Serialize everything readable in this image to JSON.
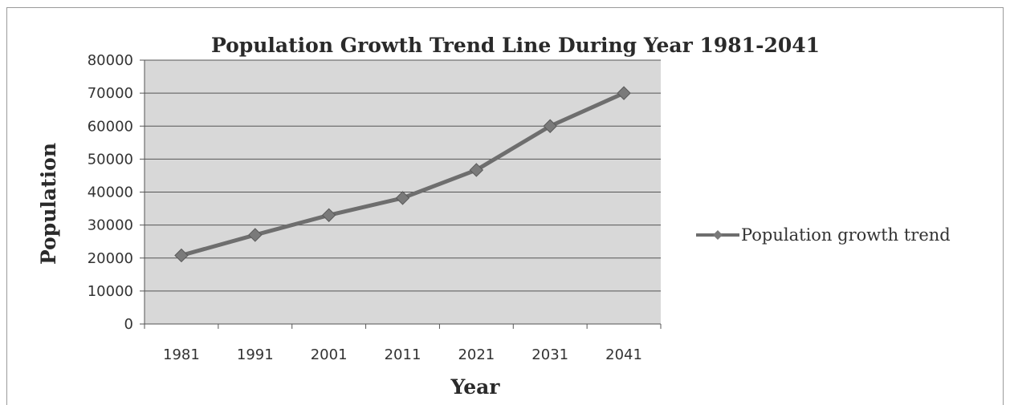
{
  "chart_data": {
    "type": "line",
    "title": "Population Growth Trend Line During Year 1981-2041",
    "xlabel": "Year",
    "ylabel": "Population",
    "categories": [
      "1981",
      "1991",
      "2001",
      "2011",
      "2021",
      "2031",
      "2041"
    ],
    "series": [
      {
        "name": "Population growth trend",
        "values": [
          20800,
          27000,
          33000,
          38200,
          46700,
          60000,
          70000
        ]
      }
    ],
    "ylim": [
      0,
      80000
    ],
    "yticks": [
      "0",
      "10000",
      "20000",
      "30000",
      "40000",
      "50000",
      "60000",
      "70000",
      "80000"
    ],
    "grid": "horizontal",
    "legend_position": "right",
    "colors": {
      "plot_background": "#d8d8d8",
      "line": "#6e6e6e",
      "marker": "#7a7a7a",
      "gridline": "#555555"
    }
  }
}
